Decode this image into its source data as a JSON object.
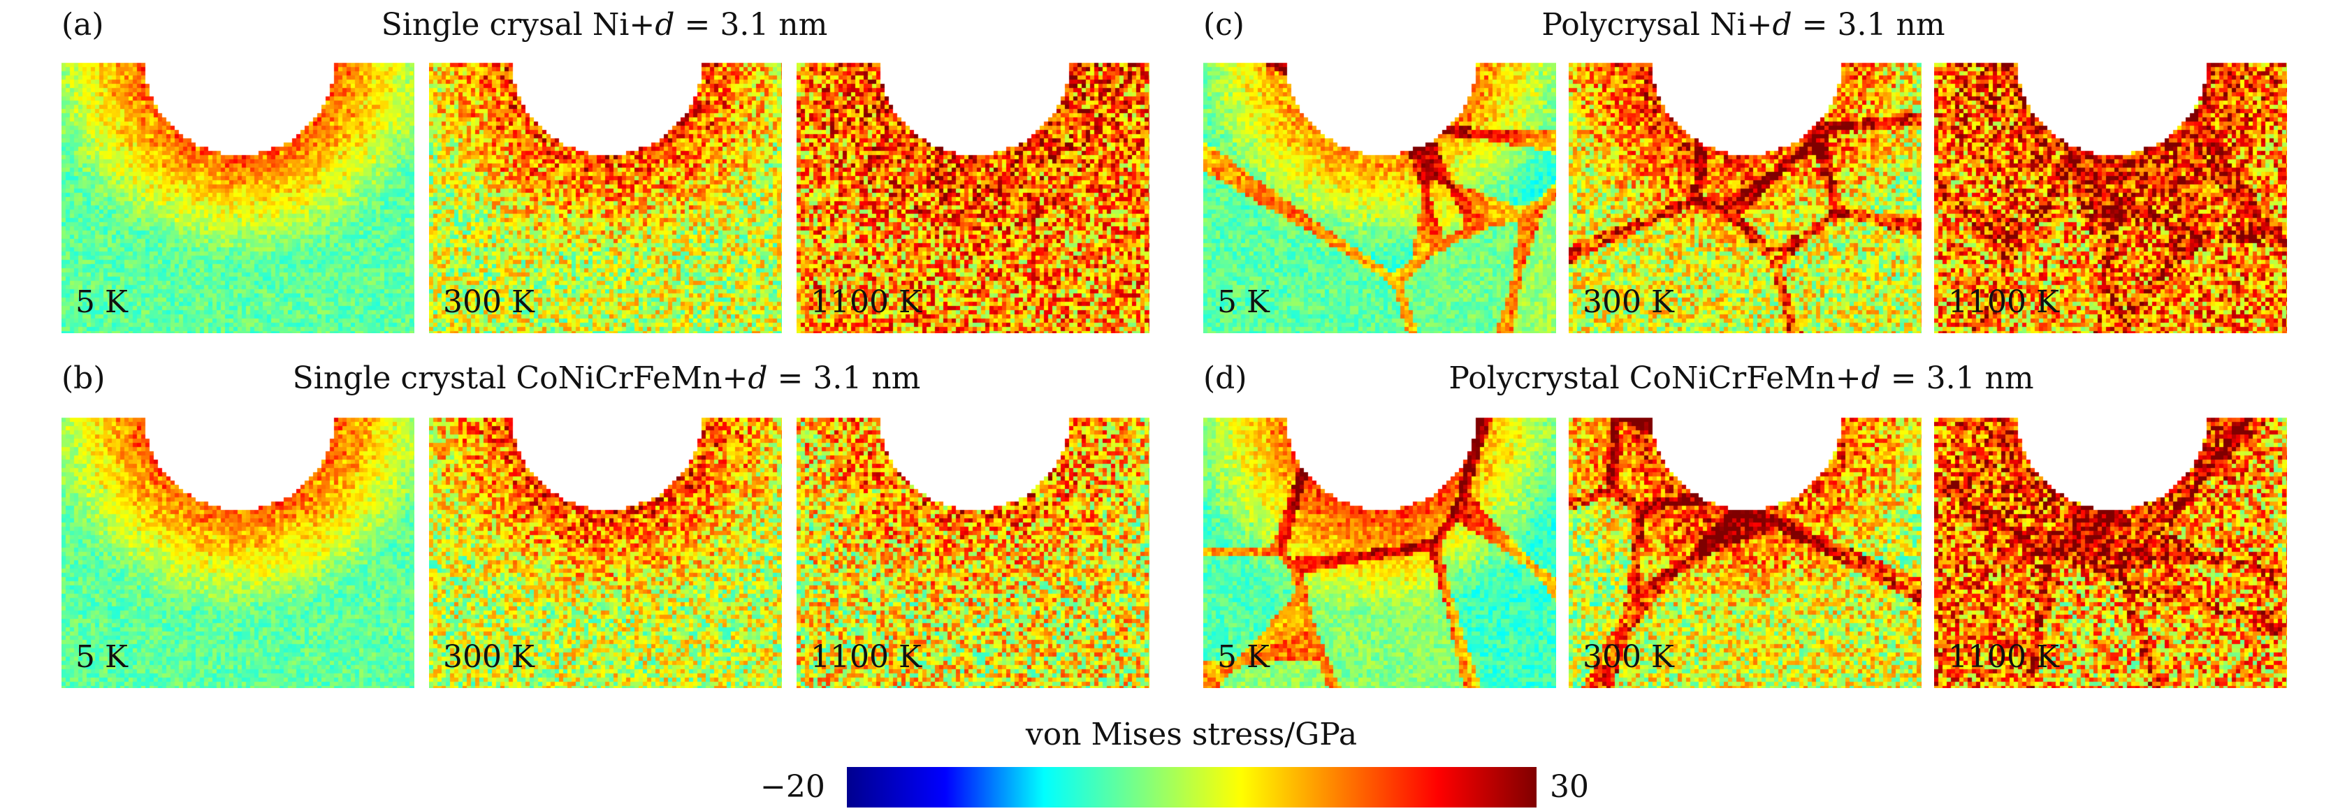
{
  "panels": [
    {
      "id": "a",
      "label": "(a)",
      "title": "Single crysal Ni+ d = 3.1 nm",
      "title_parts": {
        "pre": "Single crysal Ni+",
        "var": "d",
        "post": " = 3.1 nm"
      },
      "material": "Ni",
      "structure": "single crystal",
      "snapshots": [
        {
          "temperature": "5 K",
          "stress_level": "low"
        },
        {
          "temperature": "300 K",
          "stress_level": "medium"
        },
        {
          "temperature": "1100 K",
          "stress_level": "high"
        }
      ]
    },
    {
      "id": "b",
      "label": "(b)",
      "title_parts": {
        "pre": "Single crystal CoNiCrFeMn+",
        "var": "d",
        "post": " = 3.1 nm"
      },
      "material": "CoNiCrFeMn",
      "structure": "single crystal",
      "snapshots": [
        {
          "temperature": "5 K",
          "stress_level": "low"
        },
        {
          "temperature": "300 K",
          "stress_level": "medium"
        },
        {
          "temperature": "1100 K",
          "stress_level": "medium-high"
        }
      ]
    },
    {
      "id": "c",
      "label": "(c)",
      "title_parts": {
        "pre": "Polycrysal Ni+",
        "var": "d",
        "post": " = 3.1 nm"
      },
      "material": "Ni",
      "structure": "polycrystal",
      "snapshots": [
        {
          "temperature": "5 K",
          "stress_level": "low"
        },
        {
          "temperature": "300 K",
          "stress_level": "medium"
        },
        {
          "temperature": "1100 K",
          "stress_level": "high"
        }
      ]
    },
    {
      "id": "d",
      "label": "(d)",
      "title_parts": {
        "pre": "Polycrystal CoNiCrFeMn+",
        "var": "d",
        "post": " = 3.1 nm"
      },
      "material": "CoNiCrFeMn",
      "structure": "polycrystal",
      "snapshots": [
        {
          "temperature": "5 K",
          "stress_level": "low"
        },
        {
          "temperature": "300 K",
          "stress_level": "medium"
        },
        {
          "temperature": "1100 K",
          "stress_level": "high"
        }
      ]
    }
  ],
  "colorbar": {
    "title": "von Mises stress/GPa",
    "min_label": "−20",
    "max_label": "30",
    "min": -20,
    "max": 30,
    "colormap": "jet",
    "stops": [
      "#00008f",
      "#0000ff",
      "#00ffff",
      "#7fff7f",
      "#ffff00",
      "#ff7f00",
      "#ff0000",
      "#800000"
    ]
  }
}
